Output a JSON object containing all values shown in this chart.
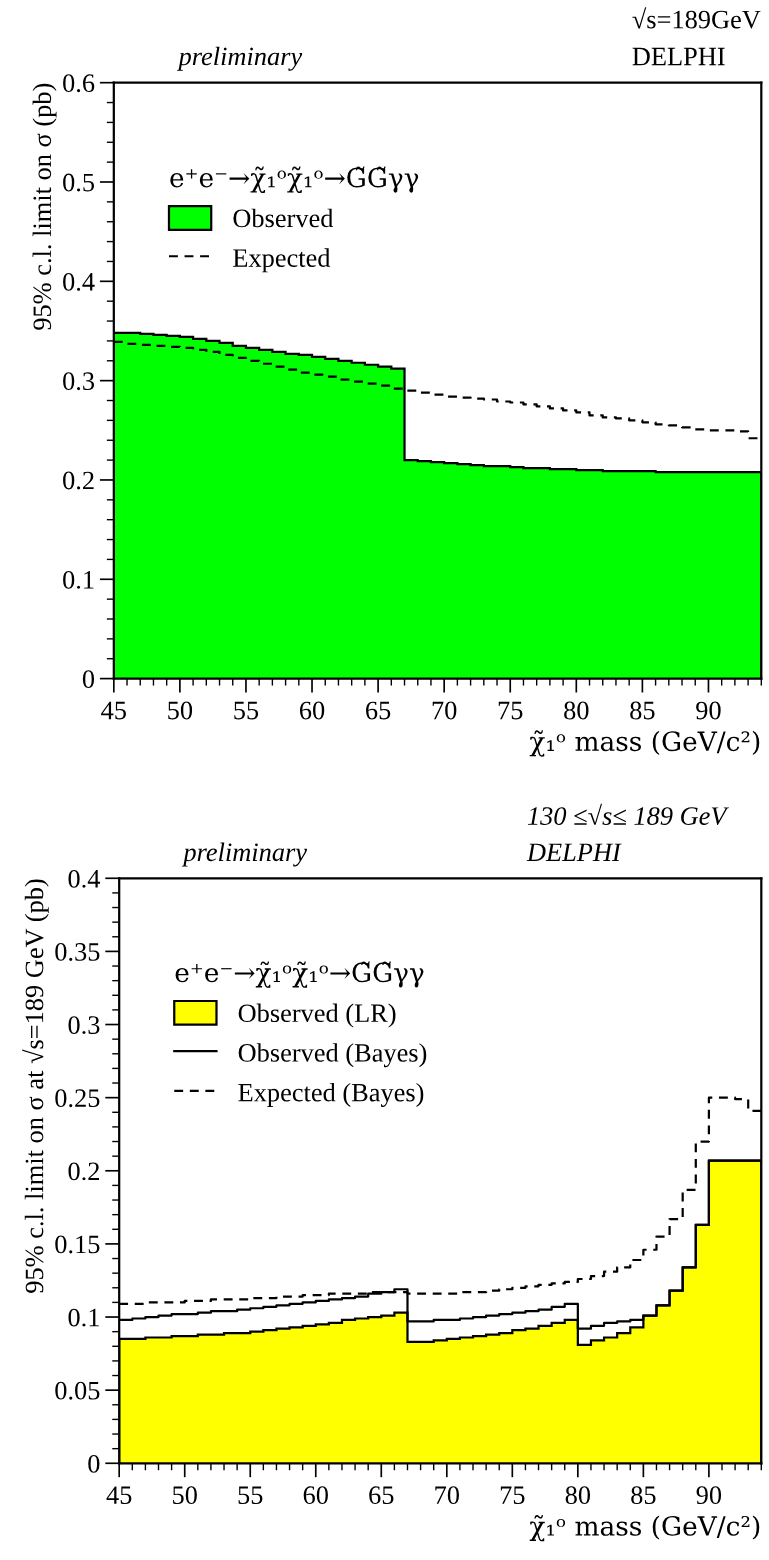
{
  "chart_data": [
    {
      "type": "histogram",
      "ylabel": "95% c.l. limit on σ (pb)",
      "xlabel": "χ̃₁ᵒ mass (GeV/c²)",
      "legend_title": "e⁺e⁻→χ̃₁ᵒχ̃₁ᵒ→G̃G̃γγ",
      "annotations": [
        "preliminary",
        "√s=189GeV",
        "DELPHI"
      ],
      "bins": [
        45,
        46,
        47,
        48,
        49,
        50,
        51,
        52,
        53,
        54,
        55,
        56,
        57,
        58,
        59,
        60,
        61,
        62,
        63,
        64,
        65,
        66,
        67,
        68,
        69,
        70,
        71,
        72,
        73,
        74,
        75,
        76,
        77,
        78,
        79,
        80,
        81,
        82,
        83,
        84,
        85,
        86,
        87,
        88,
        89,
        90,
        91,
        92,
        93,
        94
      ],
      "series": [
        {
          "name": "Observed",
          "color": "#00ff00",
          "values": [
            0.348,
            0.348,
            0.347,
            0.346,
            0.345,
            0.344,
            0.342,
            0.34,
            0.338,
            0.335,
            0.333,
            0.331,
            0.329,
            0.327,
            0.326,
            0.324,
            0.322,
            0.32,
            0.318,
            0.316,
            0.314,
            0.312,
            0.22,
            0.219,
            0.218,
            0.217,
            0.216,
            0.215,
            0.214,
            0.214,
            0.213,
            0.212,
            0.212,
            0.211,
            0.211,
            0.21,
            0.21,
            0.209,
            0.209,
            0.209,
            0.209,
            0.208,
            0.208,
            0.208,
            0.208,
            0.208,
            0.208,
            0.208,
            0.208
          ]
        },
        {
          "name": "Expected",
          "type": "step",
          "color": "#000000",
          "line_style": "dashed",
          "x": [
            45,
            46,
            47,
            48,
            49,
            50,
            51,
            52,
            53,
            54,
            55,
            56,
            57,
            58,
            59,
            60,
            61,
            62,
            63,
            64,
            65,
            66,
            67,
            68,
            69,
            70,
            71,
            72,
            73,
            74,
            75,
            76,
            77,
            78,
            79,
            80,
            81,
            82,
            83,
            84,
            85,
            86,
            87,
            88,
            89,
            90,
            91,
            92,
            93,
            94
          ],
          "values": [
            0.339,
            0.337,
            0.336,
            0.335,
            0.334,
            0.333,
            0.331,
            0.329,
            0.326,
            0.323,
            0.32,
            0.317,
            0.314,
            0.311,
            0.308,
            0.306,
            0.304,
            0.301,
            0.299,
            0.297,
            0.295,
            0.292,
            0.29,
            0.288,
            0.286,
            0.284,
            0.283,
            0.282,
            0.281,
            0.279,
            0.278,
            0.276,
            0.274,
            0.272,
            0.27,
            0.268,
            0.265,
            0.263,
            0.262,
            0.26,
            0.258,
            0.256,
            0.255,
            0.253,
            0.251,
            0.25,
            0.25,
            0.249,
            0.242,
            0.242
          ]
        }
      ],
      "xlim": [
        45,
        94
      ],
      "xticks": [
        45,
        50,
        55,
        60,
        65,
        70,
        75,
        80,
        85,
        90
      ],
      "ylim": [
        0,
        0.6
      ],
      "yticks": [
        0,
        0.1,
        0.2,
        0.3,
        0.4,
        0.5,
        0.6
      ],
      "grid": false,
      "legend": "top left"
    },
    {
      "type": "histogram",
      "ylabel": "95% c.l. limit on σ at √s=189 GeV (pb)",
      "xlabel": "χ̃₁ᵒ mass (GeV/c²)",
      "legend_title": "e⁺e⁻→χ̃₁ᵒχ̃₁ᵒ→G̃G̃γγ",
      "annotations": [
        "preliminary",
        "130 ≤√s≤ 189 GeV",
        "DELPHI"
      ],
      "bins": [
        45,
        46,
        47,
        48,
        49,
        50,
        51,
        52,
        53,
        54,
        55,
        56,
        57,
        58,
        59,
        60,
        61,
        62,
        63,
        64,
        65,
        66,
        67,
        68,
        69,
        70,
        71,
        72,
        73,
        74,
        75,
        76,
        77,
        78,
        79,
        80,
        81,
        82,
        83,
        84,
        85,
        86,
        87,
        88,
        89,
        90,
        91,
        92,
        93,
        94
      ],
      "series": [
        {
          "name": "Observed (LR)",
          "color": "#ffff00",
          "values": [
            0.085,
            0.085,
            0.086,
            0.086,
            0.087,
            0.087,
            0.088,
            0.088,
            0.089,
            0.089,
            0.09,
            0.091,
            0.092,
            0.093,
            0.094,
            0.095,
            0.096,
            0.098,
            0.099,
            0.1,
            0.101,
            0.103,
            0.083,
            0.083,
            0.084,
            0.085,
            0.086,
            0.087,
            0.088,
            0.089,
            0.091,
            0.092,
            0.094,
            0.096,
            0.098,
            0.081,
            0.084,
            0.086,
            0.089,
            0.093,
            0.101,
            0.108,
            0.118,
            0.134,
            0.163,
            0.207,
            0.207,
            0.207,
            0.207
          ]
        },
        {
          "name": "Observed (Bayes)",
          "type": "step",
          "color": "#000000",
          "line_style": "solid",
          "x": [
            45,
            46,
            47,
            48,
            49,
            50,
            51,
            52,
            53,
            54,
            55,
            56,
            57,
            58,
            59,
            60,
            61,
            62,
            63,
            64,
            65,
            66,
            67,
            68,
            69,
            70,
            71,
            72,
            73,
            74,
            75,
            76,
            77,
            78,
            79,
            80,
            81,
            82,
            83,
            84,
            85,
            86,
            87,
            88,
            89,
            90,
            91,
            92,
            93,
            94
          ],
          "values": [
            0.098,
            0.099,
            0.1,
            0.101,
            0.102,
            0.102,
            0.103,
            0.104,
            0.104,
            0.105,
            0.106,
            0.107,
            0.108,
            0.109,
            0.11,
            0.111,
            0.112,
            0.113,
            0.114,
            0.116,
            0.117,
            0.119,
            0.097,
            0.097,
            0.098,
            0.098,
            0.099,
            0.1,
            0.101,
            0.102,
            0.103,
            0.104,
            0.105,
            0.107,
            0.109,
            0.092,
            0.094,
            0.096,
            0.097,
            0.098,
            0.101,
            0.108,
            0.118,
            0.134,
            0.163,
            0.207,
            0.207,
            0.207,
            0.207,
            0.207
          ]
        },
        {
          "name": "Expected (Bayes)",
          "type": "step",
          "color": "#000000",
          "line_style": "dashed",
          "x": [
            45,
            46,
            47,
            48,
            49,
            50,
            51,
            52,
            53,
            54,
            55,
            56,
            57,
            58,
            59,
            60,
            61,
            62,
            63,
            64,
            65,
            66,
            67,
            68,
            69,
            70,
            71,
            72,
            73,
            74,
            75,
            76,
            77,
            78,
            79,
            80,
            81,
            82,
            83,
            84,
            85,
            86,
            87,
            88,
            89,
            90,
            91,
            92,
            93,
            94
          ],
          "values": [
            0.109,
            0.109,
            0.11,
            0.11,
            0.11,
            0.111,
            0.111,
            0.112,
            0.112,
            0.112,
            0.113,
            0.113,
            0.114,
            0.114,
            0.115,
            0.115,
            0.116,
            0.116,
            0.116,
            0.117,
            0.117,
            0.117,
            0.116,
            0.116,
            0.116,
            0.116,
            0.117,
            0.117,
            0.118,
            0.119,
            0.12,
            0.121,
            0.122,
            0.123,
            0.124,
            0.126,
            0.128,
            0.131,
            0.134,
            0.139,
            0.146,
            0.155,
            0.167,
            0.187,
            0.22,
            0.25,
            0.25,
            0.249,
            0.241,
            0.241
          ]
        }
      ],
      "xlim": [
        45,
        94
      ],
      "xticks": [
        45,
        50,
        55,
        60,
        65,
        70,
        75,
        80,
        85,
        90
      ],
      "ylim": [
        0,
        0.4
      ],
      "yticks": [
        0,
        0.05,
        0.1,
        0.15,
        0.2,
        0.25,
        0.3,
        0.35,
        0.4
      ],
      "grid": false,
      "legend": "top left"
    }
  ]
}
